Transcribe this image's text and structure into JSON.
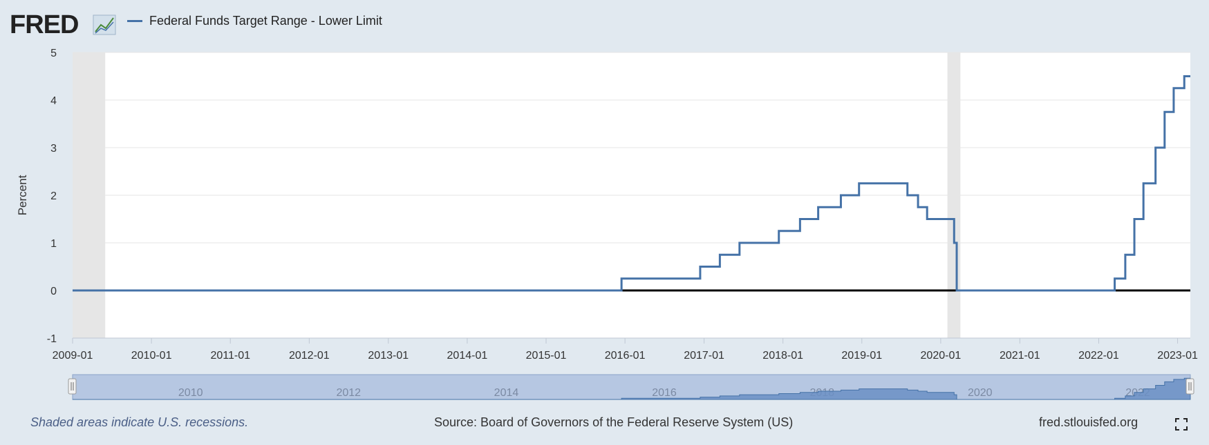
{
  "header": {
    "logo_text": "FRED",
    "logo_icon": "fred-chart-icon",
    "legend_label": "Federal Funds Target Range - Lower Limit"
  },
  "colors": {
    "background": "#e1e9f0",
    "plot_background": "#ffffff",
    "series": "#4572a7",
    "recession_shading": "#e6e6e6",
    "zero_line": "#000000",
    "navigator": "#b6c7e2",
    "navigator_series": "#6b8fc4"
  },
  "chart_data": {
    "type": "line",
    "step": true,
    "title": "",
    "xlabel": "",
    "ylabel": "Percent",
    "ylim": [
      -1,
      5
    ],
    "yticks": [
      -1,
      0,
      1,
      2,
      3,
      4,
      5
    ],
    "xlim": [
      "2009-01-01",
      "2023-03-01"
    ],
    "xticks": [
      "2009-01",
      "2010-01",
      "2011-01",
      "2012-01",
      "2013-01",
      "2014-01",
      "2015-01",
      "2016-01",
      "2017-01",
      "2018-01",
      "2019-01",
      "2020-01",
      "2021-01",
      "2022-01",
      "2023-01"
    ],
    "grid": true,
    "legend": "top-left",
    "recessions": [
      {
        "start": "2009-01-01",
        "end": "2009-06-01"
      },
      {
        "start": "2020-02-01",
        "end": "2020-04-01"
      }
    ],
    "series": [
      {
        "name": "Federal Funds Target Range - Lower Limit",
        "points": [
          {
            "date": "2009-01-01",
            "value": 0
          },
          {
            "date": "2015-12-16",
            "value": 0.25
          },
          {
            "date": "2016-12-14",
            "value": 0.5
          },
          {
            "date": "2017-03-15",
            "value": 0.75
          },
          {
            "date": "2017-06-14",
            "value": 1.0
          },
          {
            "date": "2017-12-13",
            "value": 1.25
          },
          {
            "date": "2018-03-21",
            "value": 1.5
          },
          {
            "date": "2018-06-13",
            "value": 1.75
          },
          {
            "date": "2018-09-26",
            "value": 2.0
          },
          {
            "date": "2018-12-19",
            "value": 2.25
          },
          {
            "date": "2019-07-31",
            "value": 2.0
          },
          {
            "date": "2019-09-18",
            "value": 1.75
          },
          {
            "date": "2019-10-30",
            "value": 1.5
          },
          {
            "date": "2020-03-03",
            "value": 1.0
          },
          {
            "date": "2020-03-15",
            "value": 0
          },
          {
            "date": "2022-03-16",
            "value": 0.25
          },
          {
            "date": "2022-05-04",
            "value": 0.75
          },
          {
            "date": "2022-06-15",
            "value": 1.5
          },
          {
            "date": "2022-07-27",
            "value": 2.25
          },
          {
            "date": "2022-09-21",
            "value": 3.0
          },
          {
            "date": "2022-11-02",
            "value": 3.75
          },
          {
            "date": "2022-12-14",
            "value": 4.25
          },
          {
            "date": "2023-02-01",
            "value": 4.5
          },
          {
            "date": "2023-03-01",
            "value": 4.5
          }
        ]
      }
    ]
  },
  "navigator": {
    "labels": [
      "2010",
      "2012",
      "2014",
      "2016",
      "2018",
      "2020",
      "2022"
    ]
  },
  "footer": {
    "note": "Shaded areas indicate U.S. recessions.",
    "source": "Source: Board of Governors of the Federal Reserve System (US)",
    "url": "fred.stlouisfed.org",
    "fullscreen_icon": "fullscreen-icon"
  }
}
